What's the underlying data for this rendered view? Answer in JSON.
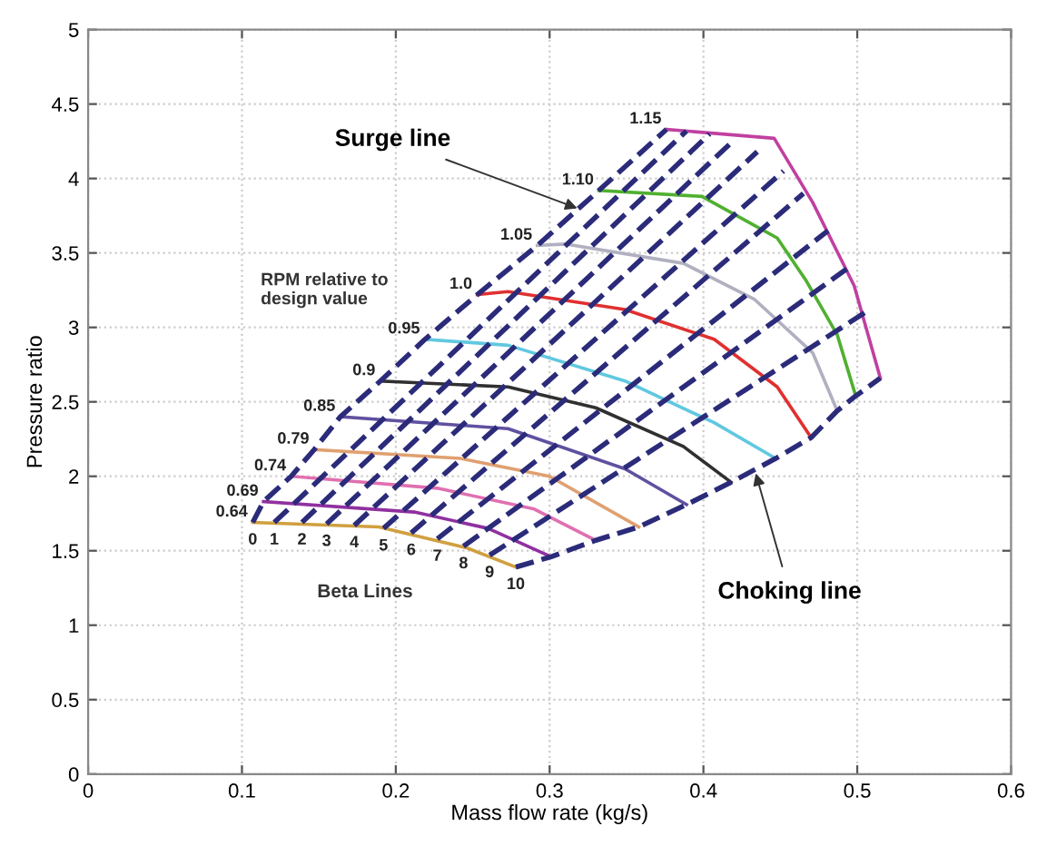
{
  "chart_data": {
    "type": "line",
    "xlabel": "Mass flow rate (kg/s)",
    "ylabel": "Pressure ratio",
    "xlim": [
      0,
      0.6
    ],
    "xticks": [
      0,
      0.1,
      0.2,
      0.3,
      0.4,
      0.5,
      0.6
    ],
    "ylim": [
      0,
      5
    ],
    "yticks": [
      0,
      0.5,
      1,
      1.5,
      2,
      2.5,
      3,
      3.5,
      4,
      4.5,
      5
    ],
    "grid": true,
    "legend": false,
    "annotations": [
      {
        "text": "Surge line",
        "x": 0.318,
        "y": 3.8
      },
      {
        "text": "Choking line",
        "x": 0.434,
        "y": 2.02
      },
      "RPM relative to\ndesign value",
      "Beta Lines"
    ],
    "series": [
      {
        "name": "1.15",
        "line_style": "solid",
        "color": "#c040a0",
        "x": [
          0.376,
          0.446,
          0.471,
          0.498,
          0.515
        ],
        "values": [
          4.33,
          4.27,
          3.84,
          3.28,
          2.66
        ]
      },
      {
        "name": "1.10",
        "line_style": "solid",
        "color": "#50b030",
        "x": [
          0.332,
          0.399,
          0.448,
          0.467,
          0.487,
          0.499
        ],
        "values": [
          3.92,
          3.88,
          3.6,
          3.31,
          2.95,
          2.54
        ]
      },
      {
        "name": "1.05",
        "line_style": "solid",
        "color": "#b0b0c0",
        "x": [
          0.292,
          0.31,
          0.387,
          0.433,
          0.471,
          0.487
        ],
        "values": [
          3.55,
          3.56,
          3.43,
          3.19,
          2.83,
          2.44
        ]
      },
      {
        "name": "1.0",
        "line_style": "solid",
        "color": "#e03030",
        "x": [
          0.253,
          0.273,
          0.349,
          0.407,
          0.448,
          0.47
        ],
        "values": [
          3.22,
          3.24,
          3.12,
          2.92,
          2.6,
          2.26
        ]
      },
      {
        "name": "0.95",
        "line_style": "solid",
        "color": "#60c8e0",
        "x": [
          0.219,
          0.273,
          0.349,
          0.407,
          0.447
        ],
        "values": [
          2.92,
          2.88,
          2.64,
          2.36,
          2.12
        ]
      },
      {
        "name": "0.9",
        "line_style": "solid",
        "color": "#303030",
        "x": [
          0.19,
          0.273,
          0.33,
          0.387,
          0.418
        ],
        "values": [
          2.64,
          2.6,
          2.46,
          2.2,
          1.96
        ]
      },
      {
        "name": "0.85",
        "line_style": "solid",
        "color": "#6050a0",
        "x": [
          0.164,
          0.273,
          0.349,
          0.389
        ],
        "values": [
          2.4,
          2.32,
          2.05,
          1.81
        ]
      },
      {
        "name": "0.79",
        "line_style": "solid",
        "color": "#e0a070",
        "x": [
          0.147,
          0.242,
          0.3,
          0.358
        ],
        "values": [
          2.18,
          2.12,
          2.0,
          1.66
        ]
      },
      {
        "name": "0.74",
        "line_style": "solid",
        "color": "#e070b0",
        "x": [
          0.132,
          0.227,
          0.29,
          0.33
        ],
        "values": [
          2.0,
          1.92,
          1.78,
          1.57
        ]
      },
      {
        "name": "0.69",
        "line_style": "solid",
        "color": "#9030a0",
        "x": [
          0.114,
          0.212,
          0.26,
          0.301
        ],
        "values": [
          1.83,
          1.76,
          1.65,
          1.46
        ]
      },
      {
        "name": "0.64",
        "line_style": "solid",
        "color": "#d0a040",
        "x": [
          0.107,
          0.189,
          0.246,
          0.278
        ],
        "values": [
          1.69,
          1.66,
          1.52,
          1.39
        ]
      },
      {
        "name": "0",
        "line_style": "dashed",
        "color": "#2b2b7a",
        "x": [
          0.107,
          0.114,
          0.132,
          0.147,
          0.164,
          0.19,
          0.219,
          0.253,
          0.292,
          0.332,
          0.376
        ],
        "values": [
          1.69,
          1.83,
          2.0,
          2.18,
          2.4,
          2.64,
          2.92,
          3.22,
          3.55,
          3.92,
          4.33
        ]
      },
      {
        "name": "1",
        "line_style": "dashed",
        "color": "#2b2b7a",
        "x": [
          0.121,
          0.389
        ],
        "values": [
          1.69,
          4.32
        ]
      },
      {
        "name": "2",
        "line_style": "dashed",
        "color": "#2b2b7a",
        "x": [
          0.139,
          0.404
        ],
        "values": [
          1.69,
          4.3
        ]
      },
      {
        "name": "3",
        "line_style": "dashed",
        "color": "#2b2b7a",
        "x": [
          0.155,
          0.419
        ],
        "values": [
          1.68,
          4.25
        ]
      },
      {
        "name": "4",
        "line_style": "dashed",
        "color": "#2b2b7a",
        "x": [
          0.173,
          0.435
        ],
        "values": [
          1.67,
          4.18
        ]
      },
      {
        "name": "5",
        "line_style": "dashed",
        "color": "#2b2b7a",
        "x": [
          0.192,
          0.452
        ],
        "values": [
          1.65,
          4.05
        ]
      },
      {
        "name": "6",
        "line_style": "dashed",
        "color": "#2b2b7a",
        "x": [
          0.21,
          0.465
        ],
        "values": [
          1.62,
          3.9
        ]
      },
      {
        "name": "7",
        "line_style": "dashed",
        "color": "#2b2b7a",
        "x": [
          0.227,
          0.481
        ],
        "values": [
          1.58,
          3.65
        ]
      },
      {
        "name": "8",
        "line_style": "dashed",
        "color": "#2b2b7a",
        "x": [
          0.244,
          0.494
        ],
        "values": [
          1.53,
          3.4
        ]
      },
      {
        "name": "9",
        "line_style": "dashed",
        "color": "#2b2b7a",
        "x": [
          0.261,
          0.505
        ],
        "values": [
          1.47,
          3.1
        ]
      },
      {
        "name": "10",
        "line_style": "dashed",
        "color": "#2b2b7a",
        "x": [
          0.278,
          0.301,
          0.33,
          0.358,
          0.389,
          0.418,
          0.447,
          0.47,
          0.487,
          0.499,
          0.515
        ],
        "values": [
          1.39,
          1.46,
          1.57,
          1.66,
          1.81,
          1.96,
          2.12,
          2.26,
          2.44,
          2.54,
          2.66
        ]
      }
    ]
  }
}
